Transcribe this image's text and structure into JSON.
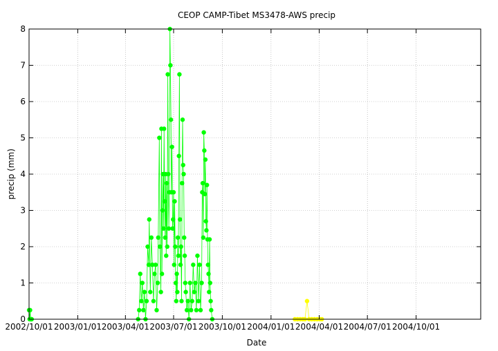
{
  "chart_data": {
    "type": "line",
    "title": "CEOP CAMP-Tibet MS3478-AWS  precip",
    "xlabel": "Date",
    "ylabel": "precip (mm)",
    "x_scale": "date",
    "xlim": [
      "2002-10-01",
      "2005-01-31"
    ],
    "ylim": [
      0,
      8
    ],
    "x_ticks": [
      "2002/10/01",
      "2003/01/01",
      "2003/04/01",
      "2003/07/01",
      "2003/10/01",
      "2004/01/01",
      "2004/04/01",
      "2004/07/01",
      "2004/10/01"
    ],
    "y_ticks": [
      0,
      1,
      2,
      3,
      4,
      5,
      6,
      7,
      8
    ],
    "grid": true,
    "legend": "none",
    "series": [
      {
        "color": "#00ff00",
        "marker": "circle",
        "points": [
          [
            "2002-10-01",
            0.25
          ],
          [
            "2002-10-02",
            0
          ],
          [
            "2002-10-03",
            0.25
          ],
          [
            "2002-10-04",
            0
          ],
          [
            "2002-10-05",
            0
          ],
          [
            "2002-10-06",
            0
          ],
          [
            "2003-04-25",
            0
          ],
          [
            "2003-04-27",
            0.25
          ],
          [
            "2003-04-29",
            1.25
          ],
          [
            "2003-05-01",
            0.5
          ],
          [
            "2003-05-03",
            1.0
          ],
          [
            "2003-05-05",
            0.25
          ],
          [
            "2003-05-07",
            0.75
          ],
          [
            "2003-05-09",
            0
          ],
          [
            "2003-05-11",
            0.5
          ],
          [
            "2003-05-13",
            2.0
          ],
          [
            "2003-05-15",
            1.5
          ],
          [
            "2003-05-16",
            2.75
          ],
          [
            "2003-05-18",
            0.75
          ],
          [
            "2003-05-20",
            2.25
          ],
          [
            "2003-05-22",
            1.5
          ],
          [
            "2003-05-24",
            0.5
          ],
          [
            "2003-05-26",
            1.25
          ],
          [
            "2003-05-28",
            1.5
          ],
          [
            "2003-05-30",
            0.25
          ],
          [
            "2003-06-01",
            1.0
          ],
          [
            "2003-06-02",
            2.25
          ],
          [
            "2003-06-04",
            5.0
          ],
          [
            "2003-06-05",
            2.0
          ],
          [
            "2003-06-07",
            0.75
          ],
          [
            "2003-06-08",
            5.25
          ],
          [
            "2003-06-09",
            1.25
          ],
          [
            "2003-06-10",
            3.0
          ],
          [
            "2003-06-11",
            4.0
          ],
          [
            "2003-06-12",
            2.5
          ],
          [
            "2003-06-13",
            5.25
          ],
          [
            "2003-06-14",
            3.25
          ],
          [
            "2003-06-15",
            2.25
          ],
          [
            "2003-06-16",
            4.0
          ],
          [
            "2003-06-17",
            1.75
          ],
          [
            "2003-06-18",
            3.75
          ],
          [
            "2003-06-19",
            2.0
          ],
          [
            "2003-06-20",
            6.75
          ],
          [
            "2003-06-21",
            4.0
          ],
          [
            "2003-06-22",
            2.5
          ],
          [
            "2003-06-23",
            3.5
          ],
          [
            "2003-06-24",
            8.0
          ],
          [
            "2003-06-25",
            7.0
          ],
          [
            "2003-06-26",
            5.5
          ],
          [
            "2003-06-27",
            3.5
          ],
          [
            "2003-06-28",
            4.75
          ],
          [
            "2003-06-29",
            2.5
          ],
          [
            "2003-06-30",
            2.75
          ],
          [
            "2003-07-01",
            3.5
          ],
          [
            "2003-07-02",
            1.5
          ],
          [
            "2003-07-03",
            3.25
          ],
          [
            "2003-07-04",
            2.0
          ],
          [
            "2003-07-05",
            1.0
          ],
          [
            "2003-07-06",
            0.5
          ],
          [
            "2003-07-07",
            1.25
          ],
          [
            "2003-07-08",
            0.75
          ],
          [
            "2003-07-09",
            2.25
          ],
          [
            "2003-07-10",
            1.75
          ],
          [
            "2003-07-11",
            4.5
          ],
          [
            "2003-07-12",
            6.75
          ],
          [
            "2003-07-13",
            2.75
          ],
          [
            "2003-07-14",
            1.5
          ],
          [
            "2003-07-15",
            2.0
          ],
          [
            "2003-07-16",
            0.5
          ],
          [
            "2003-07-17",
            3.75
          ],
          [
            "2003-07-18",
            5.5
          ],
          [
            "2003-07-19",
            4.25
          ],
          [
            "2003-07-20",
            4.0
          ],
          [
            "2003-07-21",
            2.25
          ],
          [
            "2003-07-22",
            1.75
          ],
          [
            "2003-07-23",
            1.0
          ],
          [
            "2003-07-24",
            0.75
          ],
          [
            "2003-07-26",
            0.25
          ],
          [
            "2003-07-28",
            0.5
          ],
          [
            "2003-07-30",
            0
          ],
          [
            "2003-08-01",
            1.0
          ],
          [
            "2003-08-03",
            0.25
          ],
          [
            "2003-08-05",
            0.5
          ],
          [
            "2003-08-07",
            1.5
          ],
          [
            "2003-08-09",
            0.75
          ],
          [
            "2003-08-11",
            1.0
          ],
          [
            "2003-08-13",
            0.25
          ],
          [
            "2003-08-15",
            1.75
          ],
          [
            "2003-08-17",
            0.5
          ],
          [
            "2003-08-19",
            1.5
          ],
          [
            "2003-08-21",
            0.25
          ],
          [
            "2003-08-23",
            1.0
          ],
          [
            "2003-08-24",
            3.5
          ],
          [
            "2003-08-25",
            3.75
          ],
          [
            "2003-08-26",
            2.25
          ],
          [
            "2003-08-27",
            5.15
          ],
          [
            "2003-08-28",
            4.65
          ],
          [
            "2003-08-29",
            3.45
          ],
          [
            "2003-08-30",
            4.4
          ],
          [
            "2003-08-31",
            2.7
          ],
          [
            "2003-09-01",
            2.45
          ],
          [
            "2003-09-02",
            3.7
          ],
          [
            "2003-09-03",
            2.2
          ],
          [
            "2003-09-04",
            1.5
          ],
          [
            "2003-09-05",
            1.25
          ],
          [
            "2003-09-06",
            0.75
          ],
          [
            "2003-09-07",
            2.2
          ],
          [
            "2003-09-08",
            1.0
          ],
          [
            "2003-09-09",
            0.5
          ],
          [
            "2003-09-10",
            0.25
          ],
          [
            "2003-09-12",
            0
          ]
        ]
      },
      {
        "color": "#ffff00",
        "marker": "circle",
        "points": [
          [
            "2004-02-15",
            0
          ],
          [
            "2004-02-20",
            0
          ],
          [
            "2004-02-25",
            0
          ],
          [
            "2004-03-01",
            0
          ],
          [
            "2004-03-05",
            0
          ],
          [
            "2004-03-09",
            0.5
          ],
          [
            "2004-03-13",
            0
          ],
          [
            "2004-03-18",
            0
          ],
          [
            "2004-03-23",
            0
          ],
          [
            "2004-03-28",
            0
          ],
          [
            "2004-04-02",
            0
          ],
          [
            "2004-04-06",
            0
          ]
        ]
      }
    ]
  }
}
